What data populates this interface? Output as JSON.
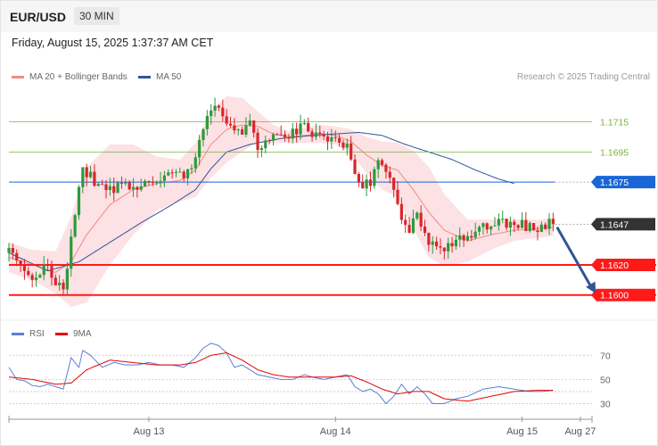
{
  "header": {
    "symbol": "EUR/USD",
    "timeframe": "30 MIN"
  },
  "timestamp": "Friday, August 15, 2025 1:37:37 AM CET",
  "legend": {
    "items": [
      {
        "label": "MA 20 + Bollinger Bands",
        "color": "#f28b82"
      },
      {
        "label": "MA 50",
        "color": "#2f5597"
      }
    ],
    "copyright": "Research © 2025 Trading Central"
  },
  "rsi_legend": {
    "items": [
      {
        "label": "RSI",
        "color": "#5b7fd6"
      },
      {
        "label": "9MA",
        "color": "#e60000"
      }
    ]
  },
  "chart_data": [
    {
      "type": "candlestick",
      "ylim": [
        1.1585,
        1.1745
      ],
      "x_ticks": [
        {
          "label": "Aug 13",
          "x": 24
        },
        {
          "label": "Aug 14",
          "x": 72
        },
        {
          "label": "Aug 15",
          "x": 120
        },
        {
          "label": "Aug 27",
          "x": 135
        }
      ],
      "x_range": [
        -12,
        138
      ],
      "last_x": 128,
      "price_levels": [
        {
          "value": 1.1715,
          "label": "1.1715",
          "kind": "resistance-thin",
          "color": "#7cb342"
        },
        {
          "value": 1.1695,
          "label": "1.1695",
          "kind": "resistance-thin",
          "color": "#7cb342"
        },
        {
          "value": 1.1675,
          "label": "1.1675",
          "kind": "pivot",
          "color": "#1a66d6"
        },
        {
          "value": 1.1647,
          "label": "1.1647",
          "kind": "last-price",
          "color": "#333333"
        },
        {
          "value": 1.162,
          "label": "1.1620",
          "kind": "support",
          "color": "#ff1a1a"
        },
        {
          "value": 1.16,
          "label": "1.1600",
          "kind": "support",
          "color": "#ff1a1a"
        }
      ],
      "forecast_arrow": {
        "from": [
          129,
          1.1645
        ],
        "to": [
          139,
          1.1601
        ],
        "color": "#2f5597"
      },
      "ohlc_anchors": [
        [
          -12,
          1.1628
        ],
        [
          -9,
          1.162
        ],
        [
          -6,
          1.1614
        ],
        [
          -3,
          1.1618
        ],
        [
          0,
          1.161
        ],
        [
          2,
          1.1602
        ],
        [
          4,
          1.164
        ],
        [
          6,
          1.1668
        ],
        [
          7,
          1.1686
        ],
        [
          9,
          1.1678
        ],
        [
          12,
          1.1672
        ],
        [
          15,
          1.167
        ],
        [
          18,
          1.1674
        ],
        [
          21,
          1.1673
        ],
        [
          24,
          1.1676
        ],
        [
          27,
          1.1675
        ],
        [
          30,
          1.168
        ],
        [
          33,
          1.168
        ],
        [
          36,
          1.1692
        ],
        [
          38,
          1.1708
        ],
        [
          40,
          1.1722
        ],
        [
          42,
          1.1722
        ],
        [
          44,
          1.1715
        ],
        [
          46,
          1.1706
        ],
        [
          48,
          1.1707
        ],
        [
          50,
          1.1712
        ],
        [
          52,
          1.17
        ],
        [
          55,
          1.1702
        ],
        [
          58,
          1.1705
        ],
        [
          61,
          1.1708
        ],
        [
          64,
          1.1712
        ],
        [
          66,
          1.1708
        ],
        [
          69,
          1.1704
        ],
        [
          72,
          1.1705
        ],
        [
          75,
          1.17
        ],
        [
          77,
          1.1683
        ],
        [
          79,
          1.1673
        ],
        [
          81,
          1.1676
        ],
        [
          83,
          1.1692
        ],
        [
          85,
          1.1682
        ],
        [
          87,
          1.167
        ],
        [
          89,
          1.165
        ],
        [
          91,
          1.1645
        ],
        [
          93,
          1.1655
        ],
        [
          95,
          1.164
        ],
        [
          97,
          1.1632
        ],
        [
          100,
          1.163
        ],
        [
          103,
          1.1635
        ],
        [
          106,
          1.1641
        ],
        [
          110,
          1.1645
        ],
        [
          114,
          1.1647
        ],
        [
          118,
          1.1647
        ],
        [
          122,
          1.1645
        ],
        [
          125,
          1.1646
        ],
        [
          128,
          1.1647
        ]
      ],
      "ma20_anchors": [
        [
          -12,
          1.1625
        ],
        [
          -6,
          1.162
        ],
        [
          0,
          1.1615
        ],
        [
          4,
          1.1622
        ],
        [
          8,
          1.164
        ],
        [
          14,
          1.166
        ],
        [
          20,
          1.167
        ],
        [
          26,
          1.1674
        ],
        [
          32,
          1.1676
        ],
        [
          36,
          1.1683
        ],
        [
          40,
          1.17
        ],
        [
          44,
          1.171
        ],
        [
          48,
          1.1713
        ],
        [
          52,
          1.1712
        ],
        [
          56,
          1.1707
        ],
        [
          60,
          1.1705
        ],
        [
          64,
          1.1706
        ],
        [
          68,
          1.1707
        ],
        [
          72,
          1.1706
        ],
        [
          76,
          1.1702
        ],
        [
          80,
          1.1693
        ],
        [
          84,
          1.1686
        ],
        [
          88,
          1.1683
        ],
        [
          92,
          1.167
        ],
        [
          96,
          1.1655
        ],
        [
          100,
          1.1643
        ],
        [
          106,
          1.1636
        ],
        [
          112,
          1.164
        ],
        [
          118,
          1.1643
        ],
        [
          124,
          1.1644
        ],
        [
          128,
          1.1645
        ]
      ],
      "bb_width_anchors": [
        [
          -12,
          0.001
        ],
        [
          -6,
          0.001
        ],
        [
          0,
          0.0014
        ],
        [
          4,
          0.003
        ],
        [
          8,
          0.0045
        ],
        [
          14,
          0.004
        ],
        [
          20,
          0.003
        ],
        [
          26,
          0.0018
        ],
        [
          32,
          0.0014
        ],
        [
          36,
          0.0018
        ],
        [
          40,
          0.0022
        ],
        [
          44,
          0.0022
        ],
        [
          48,
          0.0018
        ],
        [
          52,
          0.001
        ],
        [
          56,
          0.0006
        ],
        [
          60,
          0.0004
        ],
        [
          64,
          0.0005
        ],
        [
          68,
          0.0006
        ],
        [
          72,
          0.0006
        ],
        [
          76,
          0.0008
        ],
        [
          80,
          0.0012
        ],
        [
          84,
          0.0016
        ],
        [
          88,
          0.0018
        ],
        [
          92,
          0.0026
        ],
        [
          96,
          0.003
        ],
        [
          100,
          0.0024
        ],
        [
          106,
          0.0014
        ],
        [
          112,
          0.001
        ],
        [
          118,
          0.0007
        ],
        [
          124,
          0.0006
        ],
        [
          128,
          0.0006
        ]
      ],
      "ma50_anchors": [
        [
          -12,
          1.1628
        ],
        [
          -2,
          1.1616
        ],
        [
          6,
          1.1622
        ],
        [
          14,
          1.1635
        ],
        [
          22,
          1.1648
        ],
        [
          30,
          1.166
        ],
        [
          36,
          1.167
        ],
        [
          40,
          1.1684
        ],
        [
          44,
          1.1695
        ],
        [
          50,
          1.17
        ],
        [
          58,
          1.1704
        ],
        [
          66,
          1.1706
        ],
        [
          72,
          1.1707
        ],
        [
          78,
          1.1708
        ],
        [
          84,
          1.1706
        ],
        [
          90,
          1.17
        ],
        [
          96,
          1.1695
        ],
        [
          102,
          1.169
        ],
        [
          108,
          1.1683
        ],
        [
          114,
          1.1677
        ],
        [
          118,
          1.1674
        ]
      ]
    },
    {
      "type": "line",
      "ylim": [
        20,
        85
      ],
      "y_ticks": [
        70,
        50,
        30
      ],
      "reference_lines": [
        70,
        50,
        30,
        40
      ],
      "rsi_anchors": [
        [
          -12,
          60
        ],
        [
          -10,
          50
        ],
        [
          -8,
          49
        ],
        [
          -6,
          45
        ],
        [
          -4,
          44
        ],
        [
          -2,
          46
        ],
        [
          0,
          44
        ],
        [
          2,
          42
        ],
        [
          4,
          68
        ],
        [
          6,
          60
        ],
        [
          7,
          74
        ],
        [
          9,
          70
        ],
        [
          12,
          60
        ],
        [
          15,
          64
        ],
        [
          18,
          62
        ],
        [
          21,
          62
        ],
        [
          24,
          64
        ],
        [
          27,
          62
        ],
        [
          30,
          62
        ],
        [
          33,
          60
        ],
        [
          36,
          68
        ],
        [
          38,
          76
        ],
        [
          40,
          80
        ],
        [
          42,
          78
        ],
        [
          44,
          72
        ],
        [
          46,
          60
        ],
        [
          48,
          62
        ],
        [
          50,
          58
        ],
        [
          52,
          54
        ],
        [
          55,
          52
        ],
        [
          58,
          50
        ],
        [
          61,
          50
        ],
        [
          64,
          54
        ],
        [
          66,
          52
        ],
        [
          69,
          50
        ],
        [
          72,
          52
        ],
        [
          75,
          54
        ],
        [
          77,
          44
        ],
        [
          79,
          40
        ],
        [
          81,
          42
        ],
        [
          83,
          38
        ],
        [
          85,
          30
        ],
        [
          87,
          36
        ],
        [
          89,
          46
        ],
        [
          91,
          38
        ],
        [
          93,
          44
        ],
        [
          95,
          38
        ],
        [
          97,
          30
        ],
        [
          100,
          30
        ],
        [
          103,
          34
        ],
        [
          106,
          36
        ],
        [
          110,
          42
        ],
        [
          114,
          44
        ],
        [
          118,
          42
        ],
        [
          122,
          40
        ],
        [
          125,
          40
        ],
        [
          128,
          41
        ]
      ],
      "ma9_anchors": [
        [
          -12,
          52
        ],
        [
          -6,
          50
        ],
        [
          0,
          46
        ],
        [
          4,
          47
        ],
        [
          8,
          58
        ],
        [
          14,
          66
        ],
        [
          20,
          64
        ],
        [
          26,
          62
        ],
        [
          32,
          62
        ],
        [
          36,
          64
        ],
        [
          40,
          70
        ],
        [
          44,
          72
        ],
        [
          48,
          66
        ],
        [
          52,
          58
        ],
        [
          56,
          54
        ],
        [
          60,
          52
        ],
        [
          64,
          52
        ],
        [
          68,
          52
        ],
        [
          72,
          52
        ],
        [
          76,
          53
        ],
        [
          80,
          48
        ],
        [
          84,
          42
        ],
        [
          88,
          38
        ],
        [
          92,
          40
        ],
        [
          96,
          40
        ],
        [
          100,
          34
        ],
        [
          106,
          32
        ],
        [
          112,
          36
        ],
        [
          118,
          40
        ],
        [
          124,
          41
        ],
        [
          128,
          41
        ]
      ]
    }
  ]
}
